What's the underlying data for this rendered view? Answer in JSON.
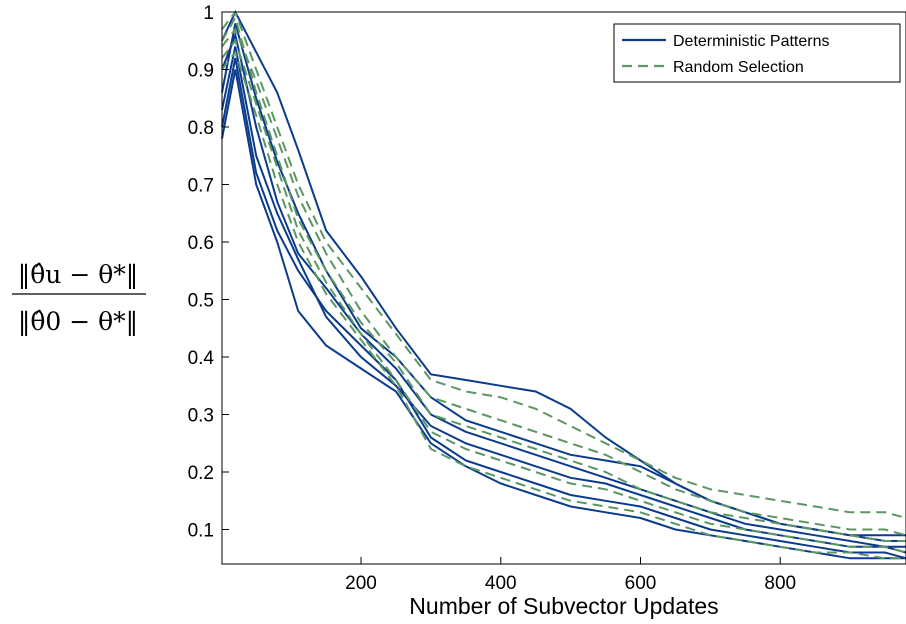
{
  "chart_data": {
    "type": "line",
    "title": "",
    "xlabel": "Number of Subvector Updates",
    "ylabel": {
      "numerator": "‖θ̂u − θ*‖",
      "denominator": "‖θ̂0 − θ*‖"
    },
    "xlim": [
      1,
      980
    ],
    "ylim": [
      0.04,
      1.0
    ],
    "xticks": [
      200,
      400,
      600,
      800
    ],
    "yticks": [
      0.1,
      0.2,
      0.3,
      0.4,
      0.5,
      0.6,
      0.7,
      0.8,
      0.9,
      1
    ],
    "grid": false,
    "legend": {
      "position": "top-right",
      "entries": [
        "Deterministic Patterns",
        "Random Selection"
      ]
    },
    "colors": {
      "Deterministic Patterns": "#0a3b8c",
      "Random Selection": "#5b9663"
    },
    "styles": {
      "Deterministic Patterns": "solid",
      "Random Selection": "dashed"
    },
    "series": [
      {
        "name": "Deterministic Patterns",
        "x": [
          1,
          20,
          50,
          80,
          110,
          150,
          200,
          250,
          300,
          350,
          400,
          450,
          500,
          550,
          600,
          650,
          700,
          750,
          800,
          850,
          900,
          950,
          980
        ],
        "values": [
          0.95,
          1.0,
          0.93,
          0.86,
          0.76,
          0.62,
          0.54,
          0.45,
          0.37,
          0.36,
          0.35,
          0.34,
          0.31,
          0.26,
          0.22,
          0.18,
          0.15,
          0.13,
          0.11,
          0.1,
          0.09,
          0.09,
          0.09
        ]
      },
      {
        "name": "Deterministic Patterns",
        "x": [
          1,
          20,
          50,
          80,
          110,
          150,
          200,
          250,
          300,
          350,
          400,
          450,
          500,
          550,
          600,
          650,
          700,
          750,
          800,
          850,
          900,
          950,
          980
        ],
        "values": [
          0.86,
          0.98,
          0.85,
          0.74,
          0.65,
          0.55,
          0.45,
          0.4,
          0.33,
          0.29,
          0.27,
          0.25,
          0.23,
          0.22,
          0.21,
          0.18,
          0.15,
          0.13,
          0.11,
          0.1,
          0.09,
          0.08,
          0.08
        ]
      },
      {
        "name": "Deterministic Patterns",
        "x": [
          1,
          20,
          50,
          80,
          110,
          150,
          200,
          250,
          300,
          350,
          400,
          450,
          500,
          550,
          600,
          650,
          700,
          750,
          800,
          850,
          900,
          950,
          980
        ],
        "values": [
          0.9,
          0.96,
          0.8,
          0.67,
          0.58,
          0.52,
          0.44,
          0.38,
          0.3,
          0.27,
          0.25,
          0.23,
          0.21,
          0.19,
          0.17,
          0.15,
          0.13,
          0.11,
          0.1,
          0.09,
          0.08,
          0.07,
          0.07
        ]
      },
      {
        "name": "Deterministic Patterns",
        "x": [
          1,
          20,
          50,
          80,
          110,
          150,
          200,
          250,
          300,
          350,
          400,
          450,
          500,
          550,
          600,
          650,
          700,
          750,
          800,
          850,
          900,
          950,
          980
        ],
        "values": [
          0.83,
          0.94,
          0.75,
          0.65,
          0.57,
          0.47,
          0.4,
          0.35,
          0.28,
          0.25,
          0.23,
          0.21,
          0.19,
          0.18,
          0.16,
          0.14,
          0.12,
          0.1,
          0.09,
          0.08,
          0.07,
          0.07,
          0.06
        ]
      },
      {
        "name": "Deterministic Patterns",
        "x": [
          1,
          20,
          50,
          80,
          110,
          150,
          200,
          250,
          300,
          350,
          400,
          450,
          500,
          550,
          600,
          650,
          700,
          750,
          800,
          850,
          900,
          950,
          980
        ],
        "values": [
          0.8,
          0.92,
          0.72,
          0.62,
          0.55,
          0.48,
          0.42,
          0.36,
          0.26,
          0.22,
          0.2,
          0.18,
          0.16,
          0.15,
          0.14,
          0.12,
          0.1,
          0.09,
          0.08,
          0.07,
          0.06,
          0.06,
          0.05
        ]
      },
      {
        "name": "Deterministic Patterns",
        "x": [
          1,
          20,
          50,
          80,
          110,
          150,
          200,
          250,
          300,
          350,
          400,
          450,
          500,
          550,
          600,
          650,
          700,
          750,
          800,
          850,
          900,
          950,
          980
        ],
        "values": [
          0.78,
          0.9,
          0.7,
          0.6,
          0.48,
          0.42,
          0.38,
          0.34,
          0.25,
          0.21,
          0.18,
          0.16,
          0.14,
          0.13,
          0.12,
          0.1,
          0.09,
          0.08,
          0.07,
          0.06,
          0.05,
          0.05,
          0.05
        ]
      },
      {
        "name": "Random Selection",
        "x": [
          1,
          20,
          50,
          80,
          110,
          150,
          200,
          250,
          300,
          350,
          400,
          450,
          500,
          550,
          600,
          650,
          700,
          750,
          800,
          850,
          900,
          950,
          980
        ],
        "values": [
          0.97,
          1.0,
          0.9,
          0.8,
          0.7,
          0.6,
          0.52,
          0.44,
          0.36,
          0.34,
          0.33,
          0.31,
          0.28,
          0.25,
          0.22,
          0.19,
          0.17,
          0.16,
          0.15,
          0.14,
          0.13,
          0.13,
          0.12
        ]
      },
      {
        "name": "Random Selection",
        "x": [
          1,
          20,
          50,
          80,
          110,
          150,
          200,
          250,
          300,
          350,
          400,
          450,
          500,
          550,
          600,
          650,
          700,
          750,
          800,
          850,
          900,
          950,
          980
        ],
        "values": [
          0.94,
          0.97,
          0.88,
          0.78,
          0.68,
          0.58,
          0.48,
          0.4,
          0.33,
          0.31,
          0.29,
          0.27,
          0.25,
          0.23,
          0.2,
          0.17,
          0.15,
          0.13,
          0.12,
          0.11,
          0.1,
          0.1,
          0.09
        ]
      },
      {
        "name": "Random Selection",
        "x": [
          1,
          20,
          50,
          80,
          110,
          150,
          200,
          250,
          300,
          350,
          400,
          450,
          500,
          550,
          600,
          650,
          700,
          750,
          800,
          850,
          900,
          950,
          980
        ],
        "values": [
          0.95,
          0.99,
          0.86,
          0.75,
          0.64,
          0.55,
          0.46,
          0.39,
          0.3,
          0.28,
          0.26,
          0.24,
          0.22,
          0.2,
          0.17,
          0.15,
          0.13,
          0.12,
          0.11,
          0.1,
          0.09,
          0.08,
          0.08
        ]
      },
      {
        "name": "Random Selection",
        "x": [
          1,
          20,
          50,
          80,
          110,
          150,
          200,
          250,
          300,
          350,
          400,
          450,
          500,
          550,
          600,
          650,
          700,
          750,
          800,
          850,
          900,
          950,
          980
        ],
        "values": [
          0.92,
          0.95,
          0.84,
          0.73,
          0.62,
          0.53,
          0.44,
          0.36,
          0.27,
          0.24,
          0.22,
          0.2,
          0.18,
          0.17,
          0.15,
          0.13,
          0.11,
          0.1,
          0.09,
          0.08,
          0.07,
          0.07,
          0.06
        ]
      },
      {
        "name": "Random Selection",
        "x": [
          1,
          20,
          50,
          80,
          110,
          150,
          200,
          250,
          300,
          350,
          400,
          450,
          500,
          550,
          600,
          650,
          700,
          750,
          800,
          850,
          900,
          950,
          980
        ],
        "values": [
          0.9,
          0.93,
          0.82,
          0.7,
          0.6,
          0.51,
          0.43,
          0.35,
          0.24,
          0.21,
          0.19,
          0.17,
          0.15,
          0.14,
          0.13,
          0.11,
          0.09,
          0.08,
          0.07,
          0.06,
          0.06,
          0.05,
          0.05
        ]
      }
    ]
  }
}
